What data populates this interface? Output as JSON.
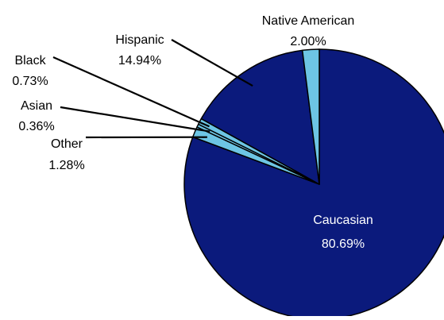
{
  "chart_data": {
    "type": "pie",
    "title": "",
    "start_angle_deg": -90,
    "direction": "clockwise",
    "slices": [
      {
        "label": "Caucasian",
        "value": 80.69,
        "value_label": "80.69%",
        "color": "#0b1a7c",
        "label_placement": "inside"
      },
      {
        "label": "Other",
        "value": 1.28,
        "value_label": "1.28%",
        "color": "#6dc5e4",
        "label_placement": "outside-left"
      },
      {
        "label": "Asian",
        "value": 0.36,
        "value_label": "0.36%",
        "color": "#6dc5e4",
        "label_placement": "outside-left"
      },
      {
        "label": "Black",
        "value": 0.73,
        "value_label": "0.73%",
        "color": "#6dc5e4",
        "label_placement": "outside-left"
      },
      {
        "label": "Hispanic",
        "value": 14.94,
        "value_label": "14.94%",
        "color": "#0b1a7c",
        "label_placement": "outside-top"
      },
      {
        "label": "Native American",
        "value": 2.0,
        "value_label": "2.00%",
        "color": "#6dc5e4",
        "label_placement": "outside-top"
      }
    ],
    "outline_color": "#000000",
    "leader_line_color": "#000000",
    "label_color_outside": "#000000",
    "label_color_inside": "#ffffff",
    "legend": "none",
    "grid": false
  }
}
